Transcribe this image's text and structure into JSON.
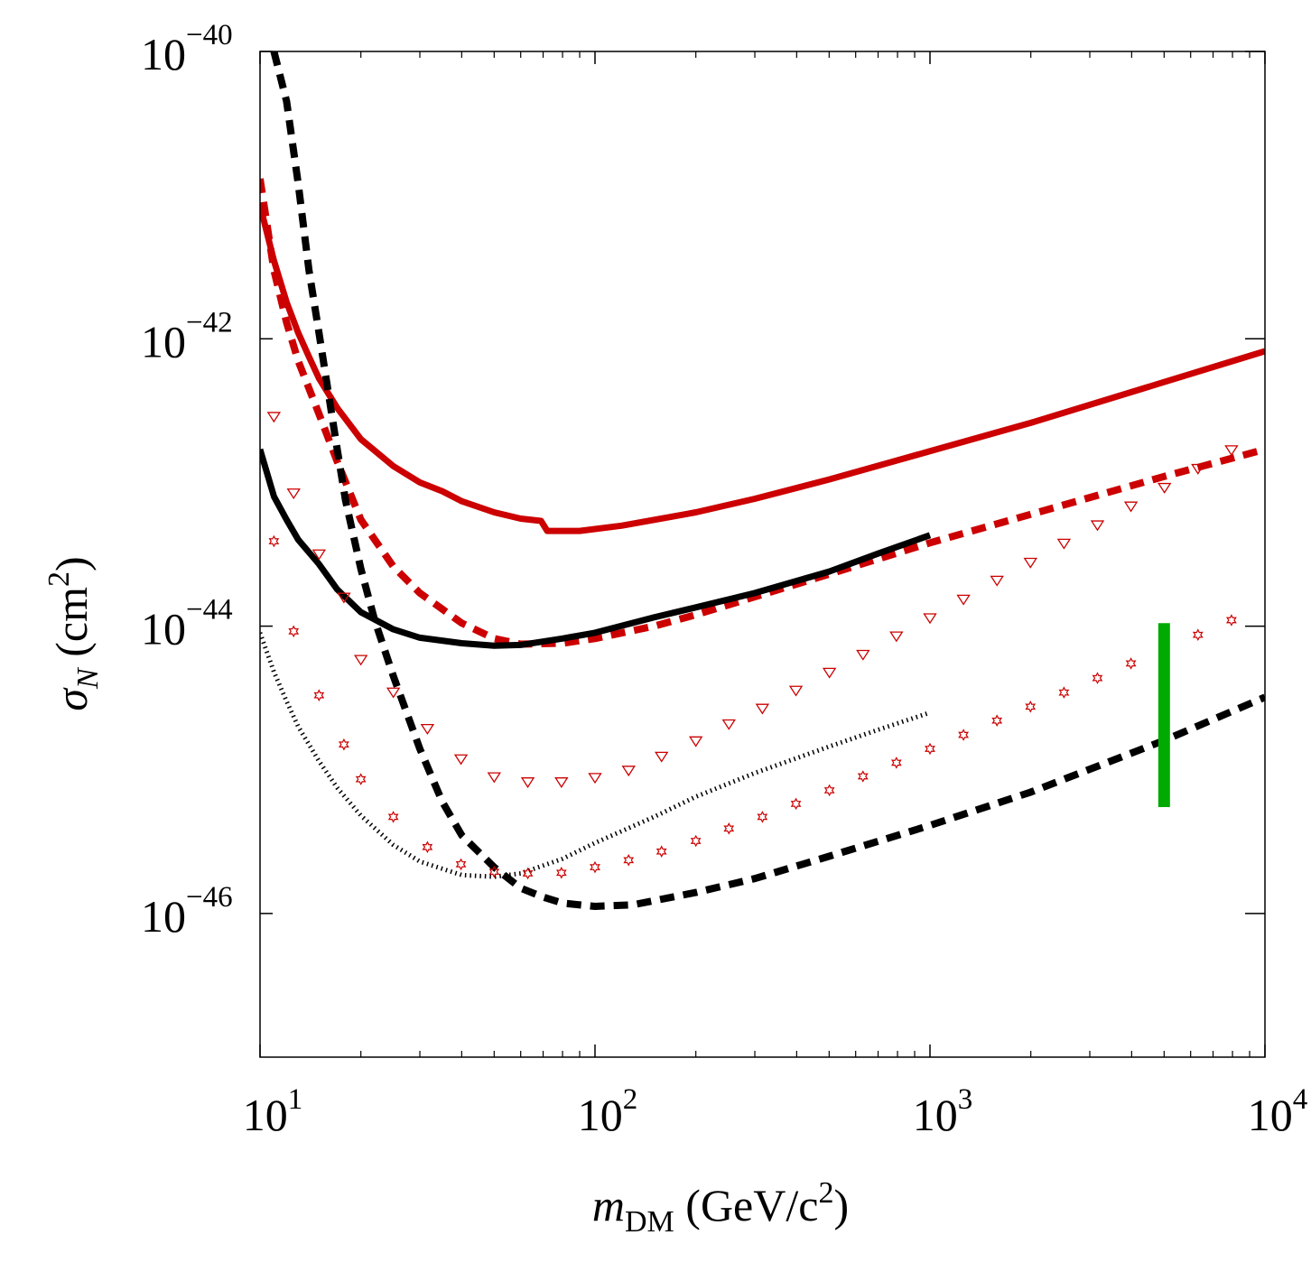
{
  "chart_data": {
    "type": "line",
    "title": "",
    "xscale": "log",
    "yscale": "log",
    "xlim": [
      10,
      10000
    ],
    "ylim": [
      1e-47,
      1e-40
    ],
    "grid": false,
    "xlabel": {
      "main": "m",
      "sub": "DM",
      "rest": " (GeV/c",
      "sup": "2",
      "close": ")"
    },
    "ylabel": {
      "main": "σ",
      "sub": "N",
      "rest": " (cm",
      "sup": "2",
      "close": ")"
    },
    "x_ticks": [
      {
        "value": 10,
        "base": "10",
        "exp": "1"
      },
      {
        "value": 100,
        "base": "10",
        "exp": "2"
      },
      {
        "value": 1000,
        "base": "10",
        "exp": "3"
      },
      {
        "value": 10000,
        "base": "10",
        "exp": "4"
      }
    ],
    "y_ticks": [
      {
        "value": 1e-40,
        "base": "10",
        "exp": "−40"
      },
      {
        "value": 1e-42,
        "base": "10",
        "exp": "−42"
      },
      {
        "value": 1e-44,
        "base": "10",
        "exp": "−44"
      },
      {
        "value": 1e-46,
        "base": "10",
        "exp": "−46"
      }
    ],
    "series": [
      {
        "name": "red-solid",
        "style": "solid",
        "color": "#cc0000",
        "points": [
          [
            10,
            8.5e-42
          ],
          [
            11,
            3.5e-42
          ],
          [
            12,
            1.8e-42
          ],
          [
            13,
            1.1e-42
          ],
          [
            14,
            7.5e-43
          ],
          [
            15,
            5.3e-43
          ],
          [
            17,
            3.3e-43
          ],
          [
            20,
            2e-43
          ],
          [
            25,
            1.3e-43
          ],
          [
            30,
            1e-43
          ],
          [
            35,
            8.7e-44
          ],
          [
            40,
            7.4e-44
          ],
          [
            50,
            6.2e-44
          ],
          [
            60,
            5.6e-44
          ],
          [
            69,
            5.4e-44
          ],
          [
            72,
            4.6e-44
          ],
          [
            90,
            4.6e-44
          ],
          [
            120,
            5e-44
          ],
          [
            200,
            6.2e-44
          ],
          [
            300,
            7.7e-44
          ],
          [
            500,
            1.05e-43
          ],
          [
            1000,
            1.65e-43
          ],
          [
            2000,
            2.6e-43
          ],
          [
            5000,
            5e-43
          ],
          [
            10000,
            8.2e-43
          ]
        ]
      },
      {
        "name": "red-dashed",
        "style": "dashed",
        "color": "#cc0000",
        "points": [
          [
            10,
            1.3e-41
          ],
          [
            11,
            3e-42
          ],
          [
            12,
            1.3e-42
          ],
          [
            13,
            7e-43
          ],
          [
            15,
            3e-43
          ],
          [
            17,
            1.4e-43
          ],
          [
            20,
            5.5e-44
          ],
          [
            25,
            2.6e-44
          ],
          [
            30,
            1.7e-44
          ],
          [
            40,
            1.05e-44
          ],
          [
            50,
            8.2e-45
          ],
          [
            60,
            7.5e-45
          ],
          [
            80,
            7.6e-45
          ],
          [
            100,
            8.2e-45
          ],
          [
            150,
            1e-44
          ],
          [
            200,
            1.2e-44
          ],
          [
            300,
            1.6e-44
          ],
          [
            500,
            2.3e-44
          ],
          [
            1000,
            3.8e-44
          ],
          [
            2000,
            6e-44
          ],
          [
            5000,
            1.1e-43
          ],
          [
            10000,
            1.7e-43
          ]
        ]
      },
      {
        "name": "black-solid",
        "style": "solid",
        "color": "#000000",
        "points": [
          [
            10,
            1.7e-43
          ],
          [
            11,
            8e-44
          ],
          [
            12,
            5.5e-44
          ],
          [
            13,
            4e-44
          ],
          [
            15,
            2.7e-44
          ],
          [
            17,
            1.8e-44
          ],
          [
            20,
            1.25e-44
          ],
          [
            25,
            9.5e-45
          ],
          [
            30,
            8.3e-45
          ],
          [
            40,
            7.6e-45
          ],
          [
            50,
            7.3e-45
          ],
          [
            60,
            7.4e-45
          ],
          [
            80,
            8.2e-45
          ],
          [
            100,
            9e-45
          ],
          [
            150,
            1.15e-44
          ],
          [
            200,
            1.35e-44
          ],
          [
            300,
            1.7e-44
          ],
          [
            500,
            2.4e-44
          ],
          [
            700,
            3.2e-44
          ],
          [
            1000,
            4.3e-44
          ]
        ]
      },
      {
        "name": "black-dashed",
        "style": "dashed",
        "color": "#000000",
        "points": [
          [
            11,
            1e-40
          ],
          [
            12,
            4.5e-41
          ],
          [
            13,
            1.2e-41
          ],
          [
            14,
            3e-42
          ],
          [
            15,
            1.1e-42
          ],
          [
            16,
            4.2e-43
          ],
          [
            17,
            1.7e-43
          ],
          [
            18,
            7.5e-44
          ],
          [
            20,
            2.5e-44
          ],
          [
            22,
            1.1e-44
          ],
          [
            25,
            4.5e-45
          ],
          [
            30,
            1.4e-45
          ],
          [
            35,
            6e-46
          ],
          [
            40,
            3.5e-46
          ],
          [
            50,
            2.1e-46
          ],
          [
            60,
            1.5e-46
          ],
          [
            70,
            1.3e-46
          ],
          [
            80,
            1.18e-46
          ],
          [
            100,
            1.12e-46
          ],
          [
            130,
            1.15e-46
          ],
          [
            200,
            1.4e-46
          ],
          [
            300,
            1.75e-46
          ],
          [
            500,
            2.5e-46
          ],
          [
            1000,
            4.1e-46
          ],
          [
            2000,
            7e-46
          ],
          [
            5000,
            1.6e-45
          ],
          [
            10000,
            3.2e-45
          ]
        ]
      },
      {
        "name": "black-dotted",
        "style": "dotted",
        "color": "#000000",
        "points": [
          [
            10,
            9e-45
          ],
          [
            11,
            4.8e-45
          ],
          [
            12,
            3e-45
          ],
          [
            13,
            2e-45
          ],
          [
            15,
            1.15e-45
          ],
          [
            17,
            7.5e-46
          ],
          [
            20,
            4.8e-46
          ],
          [
            25,
            3e-46
          ],
          [
            30,
            2.3e-46
          ],
          [
            40,
            1.85e-46
          ],
          [
            50,
            1.8e-46
          ],
          [
            60,
            1.9e-46
          ],
          [
            80,
            2.4e-46
          ],
          [
            100,
            3.1e-46
          ],
          [
            150,
            4.7e-46
          ],
          [
            200,
            6.5e-46
          ],
          [
            300,
            9.5e-46
          ],
          [
            500,
            1.45e-45
          ],
          [
            700,
            1.9e-45
          ],
          [
            1000,
            2.5e-45
          ]
        ]
      },
      {
        "name": "red-triangles",
        "style": "markers",
        "marker": "triangle-down",
        "color": "#cc0000",
        "points": [
          [
            11,
            2.9e-43
          ],
          [
            12.6,
            8.5e-44
          ],
          [
            15,
            3.2e-44
          ],
          [
            17.8,
            1.6e-44
          ],
          [
            20,
            5.9e-45
          ],
          [
            25,
            3.5e-45
          ],
          [
            31.6,
            1.95e-45
          ],
          [
            39.8,
            1.2e-45
          ],
          [
            50,
            9e-46
          ],
          [
            63,
            8.3e-46
          ],
          [
            79.4,
            8.3e-46
          ],
          [
            100,
            8.9e-46
          ],
          [
            126,
            1e-45
          ],
          [
            158,
            1.25e-45
          ],
          [
            200,
            1.6e-45
          ],
          [
            251,
            2.1e-45
          ],
          [
            316,
            2.7e-45
          ],
          [
            398,
            3.6e-45
          ],
          [
            501,
            4.8e-45
          ],
          [
            631,
            6.4e-45
          ],
          [
            794,
            8.6e-45
          ],
          [
            1000,
            1.15e-44
          ],
          [
            1259,
            1.55e-44
          ],
          [
            1585,
            2.1e-44
          ],
          [
            1995,
            2.8e-44
          ],
          [
            2512,
            3.8e-44
          ],
          [
            3162,
            5.1e-44
          ],
          [
            3981,
            6.9e-44
          ],
          [
            5012,
            9.3e-44
          ],
          [
            6310,
            1.26e-43
          ],
          [
            7943,
            1.7e-43
          ]
        ]
      },
      {
        "name": "red-stars",
        "style": "markers",
        "marker": "star",
        "color": "#cc0000",
        "points": [
          [
            11,
            3.9e-44
          ],
          [
            12.6,
            9.2e-45
          ],
          [
            15,
            3.3e-45
          ],
          [
            17.8,
            1.5e-45
          ],
          [
            20,
            8.6e-46
          ],
          [
            25,
            4.7e-46
          ],
          [
            31.6,
            2.9e-46
          ],
          [
            39.8,
            2.2e-46
          ],
          [
            50,
            1.95e-46
          ],
          [
            63,
            1.9e-46
          ],
          [
            79.4,
            1.92e-46
          ],
          [
            100,
            2.1e-46
          ],
          [
            126,
            2.35e-46
          ],
          [
            158,
            2.7e-46
          ],
          [
            200,
            3.2e-46
          ],
          [
            251,
            3.9e-46
          ],
          [
            316,
            4.7e-46
          ],
          [
            398,
            5.8e-46
          ],
          [
            501,
            7.2e-46
          ],
          [
            631,
            9e-46
          ],
          [
            794,
            1.12e-45
          ],
          [
            1000,
            1.4e-45
          ],
          [
            1259,
            1.75e-45
          ],
          [
            1585,
            2.2e-45
          ],
          [
            1995,
            2.75e-45
          ],
          [
            2512,
            3.45e-45
          ],
          [
            3162,
            4.35e-45
          ],
          [
            3981,
            5.5e-45
          ],
          [
            5012,
            6.9e-45
          ],
          [
            6310,
            8.7e-45
          ],
          [
            7943,
            1.1e-44
          ]
        ]
      },
      {
        "name": "green-bar",
        "style": "vertical-bar",
        "color": "#00aa00",
        "x": 5000,
        "y_range": [
          5.5e-46,
          1.05e-44
        ]
      }
    ]
  }
}
